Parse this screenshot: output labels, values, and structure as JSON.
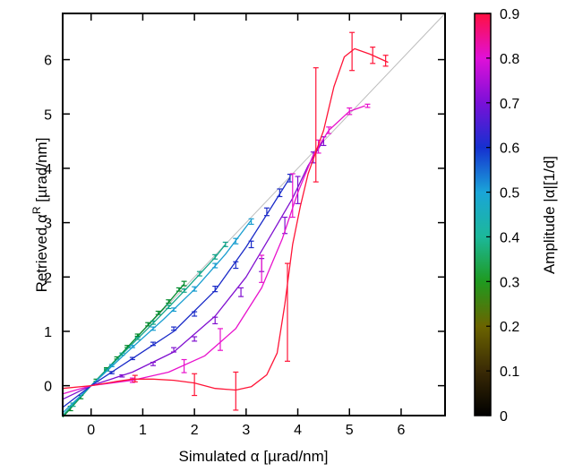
{
  "chart_data": {
    "type": "line",
    "xlabel": "Simulated α [µrad/nm]",
    "ylabel_main": "Retrieved α",
    "ylabel_sup": "R",
    "ylabel_unit": " [µrad/nm]",
    "xlim": [
      -0.55,
      6.85
    ],
    "ylim": [
      -0.55,
      6.85
    ],
    "xticks": [
      0,
      1,
      2,
      3,
      4,
      5,
      6
    ],
    "yticks": [
      0,
      1,
      2,
      3,
      4,
      5,
      6
    ],
    "grid": false,
    "reference_line": {
      "from": [
        -0.55,
        -0.55
      ],
      "to": [
        6.85,
        6.85
      ],
      "color": "#bdbdbd"
    },
    "colorbar": {
      "label": "Amplitude |α|[1/d]",
      "range": [
        0,
        0.9
      ],
      "ticks": [
        "0",
        "0.1",
        "0.2",
        "0.3",
        "0.4",
        "0.5",
        "0.6",
        "0.7",
        "0.8",
        "0.9"
      ],
      "stops": [
        {
          "v": 0.0,
          "color": "#000000"
        },
        {
          "v": 0.1,
          "color": "#3a2a05"
        },
        {
          "v": 0.2,
          "color": "#6b6400"
        },
        {
          "v": 0.3,
          "color": "#1f9a1f"
        },
        {
          "v": 0.4,
          "color": "#1cb89a"
        },
        {
          "v": 0.5,
          "color": "#1aa5d8"
        },
        {
          "v": 0.6,
          "color": "#1530d0"
        },
        {
          "v": 0.7,
          "color": "#7a10d8"
        },
        {
          "v": 0.8,
          "color": "#e010d8"
        },
        {
          "v": 0.9,
          "color": "#ff1040"
        }
      ]
    },
    "series": [
      {
        "color": "#008a2c",
        "curve": [
          [
            -0.55,
            -0.58
          ],
          [
            0,
            0
          ],
          [
            0.5,
            0.5
          ],
          [
            1,
            1.01
          ],
          [
            1.4,
            1.42
          ],
          [
            1.8,
            1.87
          ]
        ],
        "errorbars": [
          [
            -0.4,
            -0.42,
            0.04
          ],
          [
            -0.2,
            -0.21,
            0.03
          ],
          [
            0.1,
            0.1,
            0.02
          ],
          [
            0.3,
            0.31,
            0.02
          ],
          [
            0.5,
            0.51,
            0.02
          ],
          [
            0.7,
            0.72,
            0.02
          ],
          [
            0.9,
            0.93,
            0.02
          ],
          [
            1.1,
            1.13,
            0.03
          ],
          [
            1.3,
            1.34,
            0.03
          ],
          [
            1.5,
            1.55,
            0.03
          ],
          [
            1.7,
            1.77,
            0.03
          ],
          [
            1.8,
            1.88,
            0.04
          ]
        ]
      },
      {
        "color": "#12a58a",
        "curve": [
          [
            -0.55,
            -0.55
          ],
          [
            0,
            0
          ],
          [
            0.6,
            0.58
          ],
          [
            1.2,
            1.15
          ],
          [
            1.8,
            1.74
          ],
          [
            2.4,
            2.36
          ],
          [
            2.6,
            2.6
          ]
        ],
        "errorbars": [
          [
            -0.35,
            -0.35,
            0.03
          ],
          [
            0.3,
            0.29,
            0.02
          ],
          [
            0.6,
            0.58,
            0.02
          ],
          [
            0.9,
            0.87,
            0.02
          ],
          [
            1.2,
            1.16,
            0.03
          ],
          [
            1.5,
            1.45,
            0.03
          ],
          [
            1.8,
            1.75,
            0.03
          ],
          [
            2.1,
            2.06,
            0.04
          ],
          [
            2.4,
            2.37,
            0.04
          ],
          [
            2.6,
            2.6,
            0.04
          ]
        ]
      },
      {
        "color": "#1a9ed0",
        "curve": [
          [
            -0.55,
            -0.5
          ],
          [
            0,
            0
          ],
          [
            0.7,
            0.62
          ],
          [
            1.4,
            1.22
          ],
          [
            2.0,
            1.77
          ],
          [
            2.6,
            2.42
          ],
          [
            3.1,
            3.05
          ]
        ],
        "errorbars": [
          [
            0.4,
            0.37,
            0.02
          ],
          [
            0.8,
            0.72,
            0.02
          ],
          [
            1.2,
            1.05,
            0.03
          ],
          [
            1.6,
            1.4,
            0.03
          ],
          [
            2.0,
            1.78,
            0.04
          ],
          [
            2.4,
            2.21,
            0.04
          ],
          [
            2.8,
            2.66,
            0.05
          ],
          [
            3.1,
            3.02,
            0.05
          ]
        ]
      },
      {
        "color": "#1a2bc8",
        "curve": [
          [
            -0.55,
            -0.4
          ],
          [
            0,
            0
          ],
          [
            0.8,
            0.5
          ],
          [
            1.6,
            1.0
          ],
          [
            2.4,
            1.75
          ],
          [
            3.0,
            2.55
          ],
          [
            3.5,
            3.3
          ],
          [
            3.85,
            3.83
          ]
        ],
        "errorbars": [
          [
            0.4,
            0.24,
            0.02
          ],
          [
            0.8,
            0.5,
            0.02
          ],
          [
            1.2,
            0.77,
            0.03
          ],
          [
            1.6,
            1.05,
            0.03
          ],
          [
            2.0,
            1.32,
            0.04
          ],
          [
            2.4,
            1.78,
            0.05
          ],
          [
            2.8,
            2.22,
            0.06
          ],
          [
            3.1,
            2.6,
            0.06
          ],
          [
            3.4,
            3.2,
            0.07
          ],
          [
            3.65,
            3.55,
            0.07
          ],
          [
            3.85,
            3.82,
            0.07
          ]
        ]
      },
      {
        "color": "#8010d0",
        "curve": [
          [
            -0.55,
            -0.25
          ],
          [
            0,
            0
          ],
          [
            0.8,
            0.25
          ],
          [
            1.6,
            0.62
          ],
          [
            2.4,
            1.28
          ],
          [
            3.0,
            2.0
          ],
          [
            3.5,
            2.8
          ],
          [
            3.9,
            3.45
          ],
          [
            4.2,
            4.05
          ],
          [
            4.5,
            4.52
          ]
        ],
        "errorbars": [
          [
            0.6,
            0.18,
            0.02
          ],
          [
            1.2,
            0.4,
            0.03
          ],
          [
            1.6,
            0.66,
            0.04
          ],
          [
            2.0,
            0.86,
            0.04
          ],
          [
            2.4,
            1.2,
            0.06
          ],
          [
            2.9,
            1.72,
            0.08
          ],
          [
            3.3,
            2.22,
            0.12
          ],
          [
            3.75,
            2.95,
            0.15
          ],
          [
            4.0,
            3.6,
            0.25
          ],
          [
            4.3,
            4.2,
            0.1
          ],
          [
            4.5,
            4.5,
            0.08
          ]
        ]
      },
      {
        "color": "#e812cc",
        "curve": [
          [
            -0.55,
            -0.15
          ],
          [
            0,
            0
          ],
          [
            0.8,
            0.1
          ],
          [
            1.5,
            0.25
          ],
          [
            2.2,
            0.55
          ],
          [
            2.8,
            1.05
          ],
          [
            3.3,
            1.8
          ],
          [
            3.7,
            2.7
          ],
          [
            4.0,
            3.55
          ],
          [
            4.3,
            4.25
          ],
          [
            4.6,
            4.7
          ],
          [
            5.0,
            5.05
          ],
          [
            5.3,
            5.15
          ]
        ],
        "errorbars": [
          [
            0.8,
            0.1,
            0.04
          ],
          [
            1.8,
            0.36,
            0.12
          ],
          [
            2.5,
            0.85,
            0.2
          ],
          [
            3.3,
            2.15,
            0.25
          ],
          [
            3.9,
            3.5,
            0.4
          ],
          [
            4.4,
            4.4,
            0.12
          ],
          [
            4.6,
            4.7,
            0.06
          ],
          [
            5.0,
            5.05,
            0.06
          ],
          [
            5.35,
            5.15,
            0.03
          ]
        ]
      },
      {
        "color": "#ff1437",
        "curve": [
          [
            -0.55,
            -0.05
          ],
          [
            0,
            0
          ],
          [
            0.5,
            0.08
          ],
          [
            0.8,
            0.12
          ],
          [
            1.2,
            0.12
          ],
          [
            1.6,
            0.1
          ],
          [
            2.0,
            0.05
          ],
          [
            2.4,
            -0.05
          ],
          [
            2.8,
            -0.08
          ],
          [
            3.1,
            -0.02
          ],
          [
            3.4,
            0.2
          ],
          [
            3.6,
            0.6
          ],
          [
            3.75,
            1.5
          ],
          [
            3.9,
            2.6
          ],
          [
            4.05,
            3.3
          ],
          [
            4.2,
            3.9
          ],
          [
            4.35,
            4.3
          ],
          [
            4.5,
            4.7
          ],
          [
            4.7,
            5.5
          ],
          [
            4.9,
            6.05
          ],
          [
            5.1,
            6.2
          ],
          [
            5.4,
            6.1
          ],
          [
            5.75,
            5.95
          ]
        ],
        "errorbars": [
          [
            0.85,
            0.13,
            0.06
          ],
          [
            2.0,
            0.02,
            0.2
          ],
          [
            2.8,
            -0.1,
            0.35
          ],
          [
            3.8,
            1.35,
            0.9
          ],
          [
            4.35,
            4.8,
            1.05
          ],
          [
            5.05,
            6.15,
            0.35
          ],
          [
            5.45,
            6.08,
            0.15
          ],
          [
            5.7,
            5.98,
            0.1
          ]
        ]
      }
    ]
  }
}
